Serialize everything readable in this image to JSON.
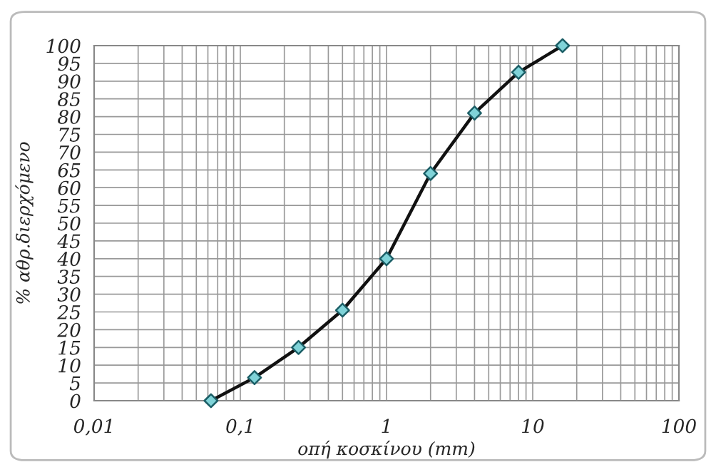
{
  "chart_data": {
    "type": "line",
    "xlabel": "οπή κοσκίνου (mm)",
    "ylabel": "% αθρ.διερχόμενο",
    "x": [
      0.063,
      0.125,
      0.25,
      0.5,
      1,
      2,
      4,
      8,
      16
    ],
    "series": [
      {
        "color": "#111111",
        "values": [
          0,
          6.5,
          15,
          25.5,
          40,
          64,
          81,
          92.5,
          100
        ]
      }
    ],
    "log": "x",
    "xlim": [
      0.01,
      100
    ],
    "xticks": [
      {
        "value": 0.01,
        "label": "0,01"
      },
      {
        "value": 0.1,
        "label": "0,1"
      },
      1,
      10,
      100
    ],
    "ylim": [
      0,
      100
    ],
    "yticks": [
      0,
      5,
      10,
      15,
      20,
      25,
      30,
      35,
      40,
      45,
      50,
      55,
      60,
      65,
      70,
      75,
      80,
      85,
      90,
      95,
      100
    ],
    "grid": true,
    "marker": "diamond",
    "line_style": "solid",
    "legend": false
  }
}
